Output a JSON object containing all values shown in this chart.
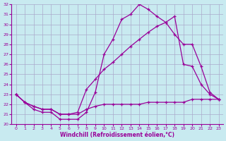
{
  "xlabel": "Windchill (Refroidissement éolien,°C)",
  "bg_color": "#c8eaf0",
  "grid_color": "#aaaacc",
  "line_color": "#990099",
  "xlim": [
    -0.5,
    23.5
  ],
  "ylim": [
    20,
    32
  ],
  "yticks": [
    20,
    21,
    22,
    23,
    24,
    25,
    26,
    27,
    28,
    29,
    30,
    31,
    32
  ],
  "xticks": [
    0,
    1,
    2,
    3,
    4,
    5,
    6,
    7,
    8,
    9,
    10,
    11,
    12,
    13,
    14,
    15,
    16,
    17,
    18,
    19,
    20,
    21,
    22,
    23
  ],
  "series": [
    {
      "x": [
        0,
        1,
        2,
        3,
        4,
        5,
        6,
        7,
        8,
        9,
        10,
        11,
        12,
        13,
        14,
        15,
        16,
        17,
        18,
        19,
        20,
        21,
        22,
        23
      ],
      "y": [
        23.0,
        22.2,
        21.5,
        21.2,
        21.2,
        20.5,
        20.5,
        20.5,
        21.2,
        23.2,
        27.0,
        28.5,
        30.5,
        31.0,
        32.0,
        31.5,
        30.8,
        30.2,
        29.0,
        28.0,
        28.0,
        25.8,
        23.2,
        22.5
      ]
    },
    {
      "x": [
        0,
        1,
        2,
        3,
        4,
        5,
        6,
        7,
        8,
        9,
        10,
        11,
        12,
        13,
        14,
        15,
        16,
        17,
        18,
        19,
        20,
        21,
        22,
        23
      ],
      "y": [
        23.0,
        22.2,
        21.8,
        21.5,
        21.5,
        21.0,
        21.0,
        21.2,
        23.5,
        24.5,
        25.5,
        26.2,
        27.0,
        27.8,
        28.5,
        29.2,
        29.8,
        30.2,
        30.8,
        26.0,
        25.8,
        24.0,
        23.0,
        22.5
      ]
    },
    {
      "x": [
        0,
        1,
        2,
        3,
        4,
        5,
        6,
        7,
        8,
        9,
        10,
        11,
        12,
        13,
        14,
        15,
        16,
        17,
        18,
        19,
        20,
        21,
        22,
        23
      ],
      "y": [
        23.0,
        22.2,
        21.8,
        21.5,
        21.5,
        21.0,
        21.0,
        21.0,
        21.5,
        21.8,
        22.0,
        22.0,
        22.0,
        22.0,
        22.0,
        22.2,
        22.2,
        22.2,
        22.2,
        22.2,
        22.5,
        22.5,
        22.5,
        22.5
      ]
    }
  ]
}
